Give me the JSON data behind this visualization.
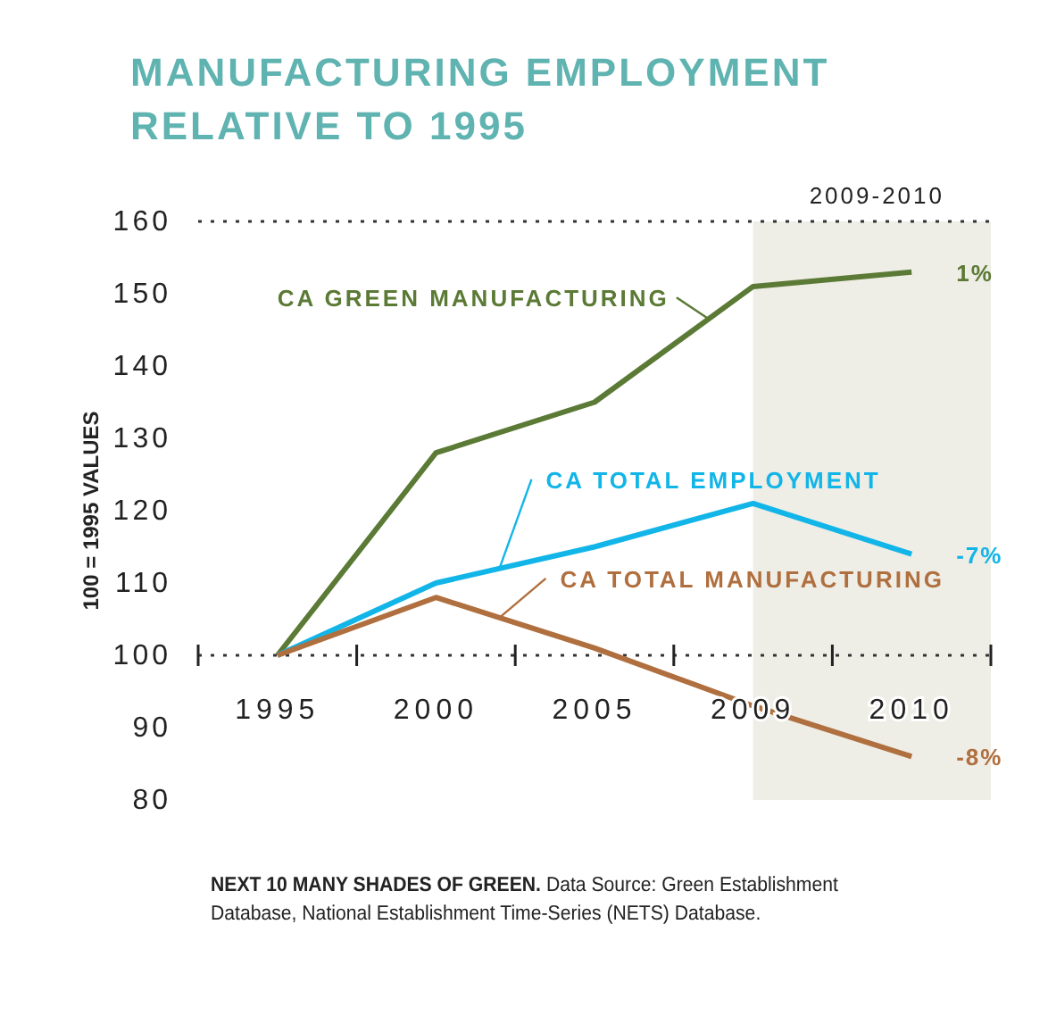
{
  "chart_data": {
    "type": "line",
    "title": "MANUFACTURING EMPLOYMENT RELATIVE TO 1995",
    "ylabel": "100 = 1995 VALUES",
    "categories": [
      "1995",
      "2000",
      "2005",
      "2009",
      "2010"
    ],
    "series": [
      {
        "name": "CA GREEN MANUFACTURING",
        "color": "#5b7a35",
        "values": [
          100,
          128,
          135,
          151,
          153
        ]
      },
      {
        "name": "CA TOTAL EMPLOYMENT",
        "color": "#12b5e8",
        "values": [
          100,
          110,
          115,
          121,
          114
        ]
      },
      {
        "name": "CA TOTAL MANUFACTURING",
        "color": "#b06f3e",
        "values": [
          100,
          108,
          101,
          93,
          86
        ]
      }
    ],
    "ylim": [
      80,
      160
    ],
    "yticks": [
      80,
      90,
      100,
      110,
      120,
      130,
      140,
      150,
      160
    ],
    "ref_lines": [
      {
        "axis": "y",
        "value": 100,
        "line_style": "dotted"
      }
    ],
    "bands": [
      {
        "axis": "x",
        "from": "2009",
        "to": "2010",
        "label": "2009-2010",
        "color": "#eeede6"
      }
    ],
    "annotations": [
      {
        "text": "1%",
        "x": "2010",
        "y": 153
      },
      {
        "text": "-7%",
        "x": "2010",
        "y": 114
      },
      {
        "text": "-8%",
        "x": "2010",
        "y": 86
      },
      "NEXT 10 MANY SHADES OF GREEN.",
      "Data Source: Green Establishment Database, National Establishment Time-Series (NETS) Database."
    ],
    "legend": "top left",
    "marker": "none",
    "line_style": "solid"
  }
}
